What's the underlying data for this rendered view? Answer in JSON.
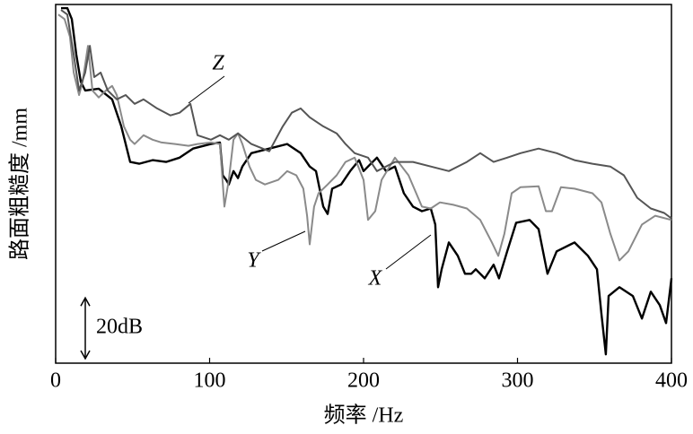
{
  "chart_data": {
    "type": "line",
    "x_label": "频率 /Hz",
    "y_label": "路面粗糙度 /mm",
    "xlim": [
      0,
      400
    ],
    "xticks": [
      0,
      100,
      200,
      300,
      400
    ],
    "ylim": [
      0,
      118
    ],
    "scale_bar": {
      "value": 20,
      "label": "20dB"
    },
    "series": [
      {
        "name": "X",
        "color": "#000000",
        "x": [
          3.5,
          7.6,
          10.5,
          13.4,
          16.3,
          19.2,
          28,
          36.7,
          42.6,
          48.4,
          54.2,
          63,
          71.7,
          80.5,
          89.2,
          100.9,
          106.7,
          108.5,
          110.8,
          112.5,
          115.5,
          118.4,
          121.3,
          127.1,
          138.8,
          150.4,
          159.2,
          165,
          169.1,
          173.8,
          176.7,
          179.6,
          185.4,
          191.3,
          197.1,
          200,
          202.9,
          208.7,
          214.6,
          220.4,
          226.2,
          232.1,
          237.9,
          243.7,
          246.6,
          248.4,
          250.7,
          255.4,
          261.2,
          265.9,
          270,
          272.9,
          278.7,
          284.5,
          288,
          293.3,
          299.1,
          307.9,
          313.7,
          319.5,
          325.4,
          337,
          345.8,
          351.6,
          354.5,
          357.4,
          359.2,
          366.2,
          374.9,
          380.8,
          386.6,
          392.4,
          396.5,
          400
        ],
        "values": [
          116.8,
          116.8,
          113.2,
          101.5,
          92.6,
          89.7,
          90.3,
          86.8,
          77.9,
          66.2,
          65.6,
          66.8,
          66.2,
          67.6,
          70.6,
          72.1,
          72.6,
          61.8,
          60.3,
          58.8,
          63.2,
          60.9,
          64.7,
          69.1,
          70.6,
          72.1,
          69.1,
          64.7,
          63.2,
          51.5,
          49.1,
          57.4,
          58.8,
          63.2,
          66.8,
          63.2,
          64.7,
          67.6,
          63.2,
          64.7,
          55.9,
          51.5,
          50,
          50.9,
          45.6,
          25,
          30.9,
          39.7,
          35.3,
          29.4,
          29.4,
          30.9,
          27.9,
          32.4,
          27.9,
          36.8,
          46.2,
          47.1,
          44.1,
          29.4,
          36.8,
          39.7,
          35.3,
          30.9,
          16.2,
          2.9,
          22.1,
          25,
          22.1,
          14.7,
          23.5,
          19.1,
          13.2,
          27.9
        ]
      },
      {
        "name": "Y",
        "color": "#8a8a8a",
        "x": [
          1.7,
          5.8,
          9.3,
          11.7,
          15.2,
          17.5,
          21,
          23.9,
          28,
          32.7,
          36.7,
          39.7,
          44.3,
          48.4,
          51.3,
          57.1,
          63,
          68.8,
          77.6,
          86.3,
          92.1,
          100.9,
          106.7,
          109.6,
          112.5,
          115.5,
          118.4,
          121.3,
          125.9,
          130,
          135.9,
          144.6,
          150.4,
          156.3,
          160.9,
          163.3,
          165,
          167.9,
          170.8,
          176.7,
          182.5,
          188.3,
          194.2,
          200,
          202.9,
          207.6,
          211.7,
          220.4,
          229.2,
          237.9,
          243.7,
          249.6,
          258.3,
          267.1,
          275.8,
          283.4,
          287.5,
          291.5,
          296.2,
          302,
          313.7,
          318.4,
          322.4,
          328.2,
          337,
          348.7,
          354.5,
          360.3,
          366.2,
          372,
          380.8,
          389.5,
          400
        ],
        "values": [
          114.7,
          113.2,
          107.4,
          95.6,
          88.2,
          92.6,
          104.4,
          89.7,
          87.4,
          89.7,
          91.2,
          88.2,
          77.9,
          73.5,
          72.1,
          75,
          73.5,
          72.6,
          72.1,
          71.5,
          72.1,
          72.6,
          72.1,
          51.5,
          60.3,
          73.5,
          75.6,
          72.1,
          64.7,
          60.3,
          58.8,
          60.3,
          63.2,
          61.8,
          57.4,
          48.5,
          39.1,
          51.5,
          55.9,
          58.8,
          61.8,
          66.2,
          67.6,
          60.3,
          47.1,
          50,
          60.3,
          67.6,
          61.8,
          51.5,
          50.9,
          52.9,
          52.1,
          50.9,
          47.1,
          39.7,
          35.3,
          42.6,
          55.9,
          57.9,
          58.2,
          50,
          50,
          57.9,
          57.4,
          55.9,
          52.9,
          42.6,
          33.8,
          36.8,
          45.6,
          48.5,
          47.1
        ]
      },
      {
        "name": "Z",
        "color": "#555555",
        "x": [
          3.5,
          7.6,
          11.7,
          15.2,
          19.2,
          22.2,
          25.1,
          29.2,
          33.8,
          39.7,
          45.5,
          51.3,
          57.1,
          65.9,
          74.6,
          80.5,
          87.5,
          92.1,
          100.9,
          106.7,
          112.5,
          118.4,
          127.1,
          138.8,
          147.5,
          153.4,
          159.2,
          165,
          173.8,
          182.5,
          188.3,
          194.2,
          202.9,
          208.7,
          220.4,
          232.1,
          243.7,
          255.4,
          267.1,
          275.8,
          284.5,
          293.3,
          302,
          313.7,
          325.4,
          337,
          348.7,
          360.3,
          369.1,
          377.8,
          386.6,
          395.3,
          400
        ],
        "values": [
          116.2,
          114.7,
          101.5,
          89.7,
          95.6,
          104.4,
          94.1,
          95.6,
          89.7,
          86.8,
          88.2,
          85.3,
          86.8,
          83.8,
          81.5,
          82.4,
          85.3,
          75,
          73.5,
          75,
          73.5,
          75.6,
          72.1,
          69.7,
          77.9,
          82.4,
          83.8,
          80.9,
          77.9,
          75.6,
          72.1,
          69.1,
          67.6,
          63.2,
          66.2,
          66.2,
          64.7,
          63.2,
          66.2,
          69.1,
          66.2,
          67.6,
          69.1,
          70.6,
          69.1,
          66.8,
          65.6,
          64.7,
          61.8,
          54.4,
          50.9,
          49.4,
          47.6
        ]
      }
    ]
  }
}
